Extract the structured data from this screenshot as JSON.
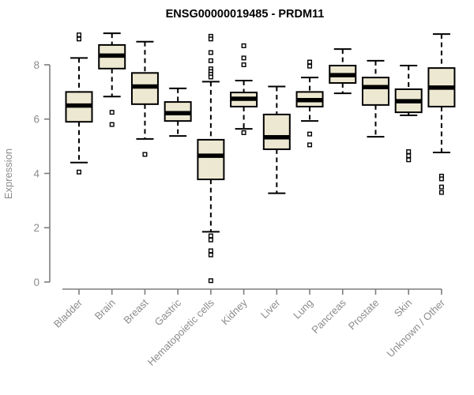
{
  "chart_data": {
    "type": "boxplot",
    "title": "ENSG00000019485 - PRDM11",
    "ylabel": "Expression",
    "xlabel": "",
    "ylim": [
      0,
      9.4
    ],
    "yticks": [
      0,
      2,
      4,
      6,
      8
    ],
    "grid": false,
    "legend": "none",
    "categories": [
      "Bladder",
      "Brain",
      "Breast",
      "Gastric",
      "Hematopoietic cells",
      "Kidney",
      "Liver",
      "Lung",
      "Pancreas",
      "Prostate",
      "Skin",
      "Unknown / Other"
    ],
    "series": [
      {
        "category": "Bladder",
        "whisker_low": 4.4,
        "q1": 5.9,
        "median": 6.5,
        "q3": 7.0,
        "whisker_high": 8.25,
        "outliers": [
          9.1,
          8.95,
          4.05
        ]
      },
      {
        "category": "Brain",
        "whisker_low": 6.83,
        "q1": 7.86,
        "median": 8.34,
        "q3": 8.73,
        "whisker_high": 9.16,
        "outliers": [
          6.25,
          5.8
        ]
      },
      {
        "category": "Breast",
        "whisker_low": 5.27,
        "q1": 6.55,
        "median": 7.2,
        "q3": 7.7,
        "whisker_high": 8.85,
        "outliers": [
          4.7
        ]
      },
      {
        "category": "Gastric",
        "whisker_low": 5.38,
        "q1": 5.93,
        "median": 6.22,
        "q3": 6.63,
        "whisker_high": 7.13,
        "outliers": []
      },
      {
        "category": "Hematopoietic cells",
        "whisker_low": 1.85,
        "q1": 3.78,
        "median": 4.65,
        "q3": 5.24,
        "whisker_high": 7.38,
        "outliers": [
          9.05,
          8.95,
          8.45,
          8.15,
          7.85,
          7.75,
          7.65,
          7.55,
          1.7,
          1.55,
          1.15,
          1.0,
          0.05
        ]
      },
      {
        "category": "Kidney",
        "whisker_low": 5.64,
        "q1": 6.46,
        "median": 6.75,
        "q3": 6.98,
        "whisker_high": 7.42,
        "outliers": [
          8.7,
          8.25,
          8.0,
          5.5
        ]
      },
      {
        "category": "Liver",
        "whisker_low": 3.27,
        "q1": 4.89,
        "median": 5.33,
        "q3": 6.17,
        "whisker_high": 7.2,
        "outliers": []
      },
      {
        "category": "Lung",
        "whisker_low": 5.93,
        "q1": 6.46,
        "median": 6.7,
        "q3": 7.0,
        "whisker_high": 7.53,
        "outliers": [
          8.1,
          7.95,
          5.45,
          5.05
        ]
      },
      {
        "category": "Pancreas",
        "whisker_low": 6.95,
        "q1": 7.33,
        "median": 7.62,
        "q3": 7.97,
        "whisker_high": 8.58,
        "outliers": []
      },
      {
        "category": "Prostate",
        "whisker_low": 5.35,
        "q1": 6.52,
        "median": 7.18,
        "q3": 7.53,
        "whisker_high": 8.15,
        "outliers": []
      },
      {
        "category": "Skin",
        "whisker_low": 6.14,
        "q1": 6.25,
        "median": 6.66,
        "q3": 7.1,
        "whisker_high": 7.97,
        "outliers": [
          4.8,
          4.65,
          4.5
        ]
      },
      {
        "category": "Unknown / Other",
        "whisker_low": 4.77,
        "q1": 6.46,
        "median": 7.16,
        "q3": 7.88,
        "whisker_high": 9.13,
        "outliers": [
          3.9,
          3.8,
          3.5,
          3.3
        ]
      }
    ],
    "colors": {
      "box_fill": "#ede8d1",
      "box_border": "#000000",
      "median": "#000000",
      "whisker": "#000000",
      "outlier_stroke": "#000000",
      "axis": "#7d7d7d",
      "tick_text": "#8c8c8c",
      "title_text": "#000000",
      "background": "#ffffff"
    }
  }
}
